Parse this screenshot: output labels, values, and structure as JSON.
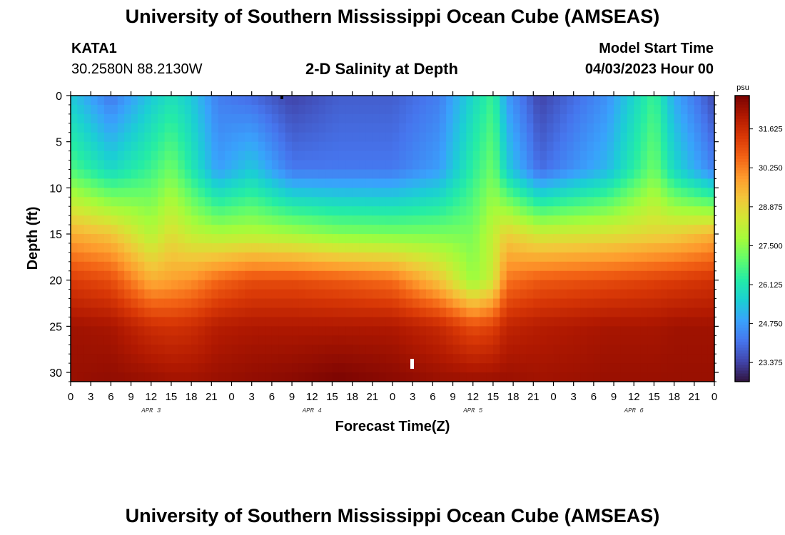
{
  "header": {
    "title": "University of Southern Mississippi Ocean Cube (AMSEAS)",
    "station_name": "KATA1",
    "station_coords": "30.2580N  88.2130W",
    "model_start_label": "Model Start Time",
    "model_start_value": "04/03/2023 Hour 00"
  },
  "footer": {
    "title": "University of Southern Mississippi Ocean Cube (AMSEAS)"
  },
  "chart_data": {
    "type": "heatmap",
    "title": "2-D Salinity at Depth",
    "xlabel": "Forecast Time(Z)",
    "ylabel": "Depth (ft)",
    "x_unit": "forecast hour",
    "xlim": [
      0,
      96
    ],
    "ylim": [
      0,
      31
    ],
    "y_inverted": true,
    "x_tick_labels": [
      "0",
      "3",
      "6",
      "9",
      "12",
      "15",
      "18",
      "21",
      "0",
      "3",
      "6",
      "9",
      "12",
      "15",
      "18",
      "21",
      "0",
      "3",
      "6",
      "9",
      "12",
      "15",
      "18",
      "21",
      "0",
      "3",
      "6",
      "9",
      "12",
      "15",
      "18",
      "21",
      "0"
    ],
    "x_tick_hours": [
      0,
      3,
      6,
      9,
      12,
      15,
      18,
      21,
      24,
      27,
      30,
      33,
      36,
      39,
      42,
      45,
      48,
      51,
      54,
      57,
      60,
      63,
      66,
      69,
      72,
      75,
      78,
      81,
      84,
      87,
      90,
      93,
      96
    ],
    "day_labels": [
      {
        "label": "APR 3",
        "hour": 12
      },
      {
        "label": "APR 4",
        "hour": 36
      },
      {
        "label": "APR 5",
        "hour": 60
      },
      {
        "label": "APR 6",
        "hour": 84
      }
    ],
    "y_ticks": [
      0,
      5,
      10,
      15,
      20,
      25,
      30
    ],
    "y_tick_labels": [
      "0",
      "5",
      "10",
      "15",
      "20",
      "25",
      "30"
    ],
    "colorbar": {
      "unit": "psu",
      "min": 22.7,
      "max": 32.8,
      "tick_values": [
        23.375,
        24.75,
        26.125,
        27.5,
        28.875,
        30.25,
        31.625
      ],
      "tick_labels": [
        "23.375",
        "24.750",
        "26.125",
        "27.500",
        "28.875",
        "30.250",
        "31.625"
      ]
    },
    "colormap": [
      "#30123b",
      "#4145ab",
      "#4675ed",
      "#39a2fc",
      "#1bcfd4",
      "#24eca6",
      "#61fc6c",
      "#a4fc3b",
      "#d1e834",
      "#f3c63a",
      "#fe9b2d",
      "#f36315",
      "#d93806",
      "#b11901",
      "#7a0402"
    ],
    "depth_profile": {
      "note_depths_ft": [
        0,
        8,
        15,
        20,
        25,
        31
      ],
      "hours": [
        0,
        6,
        12,
        15,
        18,
        22,
        27,
        33,
        40,
        48,
        55,
        60,
        63,
        65,
        70,
        80,
        87,
        90,
        96
      ],
      "salinity_psu": [
        [
          25.5,
          24.2,
          25.5,
          26.0,
          25.5,
          24.3,
          24.0,
          23.4,
          23.8,
          23.8,
          24.3,
          25.8,
          26.6,
          24.8,
          23.4,
          24.6,
          26.6,
          25.0,
          23.5
        ],
        [
          26.8,
          25.8,
          26.6,
          27.2,
          26.2,
          24.8,
          25.5,
          24.2,
          24.2,
          24.2,
          24.8,
          26.4,
          27.2,
          25.6,
          24.0,
          25.2,
          27.2,
          25.8,
          24.3
        ],
        [
          29.6,
          29.2,
          28.0,
          28.7,
          28.2,
          27.9,
          28.0,
          27.8,
          27.4,
          27.3,
          27.3,
          27.3,
          28.2,
          29.0,
          28.4,
          28.6,
          28.9,
          29.0,
          29.5
        ],
        [
          31.3,
          31.0,
          29.6,
          29.8,
          30.0,
          30.6,
          31.0,
          31.0,
          30.8,
          30.5,
          29.2,
          27.6,
          28.4,
          30.4,
          30.8,
          31.0,
          31.2,
          31.3,
          31.5
        ],
        [
          32.3,
          32.2,
          31.6,
          31.5,
          31.6,
          32.0,
          32.1,
          32.1,
          32.1,
          32.1,
          31.7,
          31.0,
          31.2,
          31.8,
          32.0,
          32.2,
          32.2,
          32.3,
          32.3
        ],
        [
          32.4,
          32.5,
          32.4,
          32.3,
          32.3,
          32.4,
          32.5,
          32.6,
          32.8,
          32.6,
          32.4,
          32.4,
          32.4,
          32.4,
          32.3,
          32.4,
          32.4,
          32.4,
          32.4
        ]
      ]
    }
  }
}
